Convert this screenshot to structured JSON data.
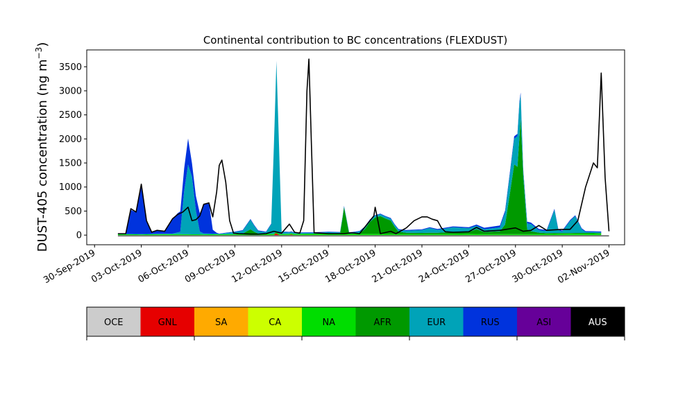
{
  "chart_data": {
    "type": "area",
    "title": "Continental contribution to BC concentrations (FLEXDUST)",
    "ylabel_main": "DUST-405 concentration (ng m",
    "ylabel_sup": "−3",
    "ylabel_end": ")",
    "xlabel": "",
    "stacked": true,
    "x_axis": {
      "start": "2019-09-29T12:00",
      "end": "2019-11-03T00:00",
      "ticks": [
        {
          "date": "2019-09-30",
          "label": "30-Sep-2019"
        },
        {
          "date": "2019-10-03",
          "label": "03-Oct-2019"
        },
        {
          "date": "2019-10-06",
          "label": "06-Oct-2019"
        },
        {
          "date": "2019-10-09",
          "label": "09-Oct-2019"
        },
        {
          "date": "2019-10-12",
          "label": "12-Oct-2019"
        },
        {
          "date": "2019-10-15",
          "label": "15-Oct-2019"
        },
        {
          "date": "2019-10-18",
          "label": "18-Oct-2019"
        },
        {
          "date": "2019-10-21",
          "label": "21-Oct-2019"
        },
        {
          "date": "2019-10-24",
          "label": "24-Oct-2019"
        },
        {
          "date": "2019-10-27",
          "label": "27-Oct-2019"
        },
        {
          "date": "2019-10-30",
          "label": "30-Oct-2019"
        },
        {
          "date": "2019-11-02",
          "label": "02-Nov-2019"
        }
      ]
    },
    "ylim": [
      -200,
      3850
    ],
    "y_ticks": [
      0,
      500,
      1000,
      1500,
      2000,
      2500,
      3000,
      3500
    ],
    "grid": false,
    "legend": {
      "placement": "colorbar-below",
      "entries": [
        {
          "name": "OCE",
          "color": "#cccccc",
          "text_color": "#000000"
        },
        {
          "name": "GNL",
          "color": "#e60000",
          "text_color": "#000000"
        },
        {
          "name": "SA",
          "color": "#ffaa00",
          "text_color": "#000000"
        },
        {
          "name": "CA",
          "color": "#ccff00",
          "text_color": "#000000"
        },
        {
          "name": "NA",
          "color": "#00dd00",
          "text_color": "#000000"
        },
        {
          "name": "AFR",
          "color": "#009900",
          "text_color": "#000000"
        },
        {
          "name": "EUR",
          "color": "#00a3b8",
          "text_color": "#000000"
        },
        {
          "name": "RUS",
          "color": "#0033dd",
          "text_color": "#000000"
        },
        {
          "name": "ASI",
          "color": "#660099",
          "text_color": "#000000"
        },
        {
          "name": "AUS",
          "color": "#000000",
          "text_color": "#ffffff"
        }
      ]
    },
    "series_order": [
      "GNL",
      "NA",
      "AFR",
      "EUR",
      "RUS"
    ],
    "series": {
      "GNL": [
        [
          "2019-10-11T12:00",
          0
        ],
        [
          "2019-10-11T15:00",
          40
        ],
        [
          "2019-10-11T18:00",
          20
        ],
        [
          "2019-10-11T21:00",
          0
        ],
        [
          "2019-10-12T12:00",
          0
        ],
        [
          "2019-10-12T15:00",
          15
        ],
        [
          "2019-10-12T18:00",
          0
        ]
      ],
      "NA": [
        [
          "2019-10-01T12:00",
          20
        ],
        [
          "2019-10-03T00:00",
          15
        ],
        [
          "2019-10-05T00:00",
          20
        ],
        [
          "2019-10-07T00:00",
          15
        ],
        [
          "2019-10-09T00:00",
          20
        ],
        [
          "2019-10-10T00:00",
          30
        ],
        [
          "2019-10-12T00:00",
          20
        ],
        [
          "2019-10-14T00:00",
          25
        ],
        [
          "2019-10-16T00:00",
          25
        ],
        [
          "2019-10-18T00:00",
          25
        ],
        [
          "2019-10-20T00:00",
          20
        ],
        [
          "2019-10-22T00:00",
          20
        ],
        [
          "2019-10-24T00:00",
          25
        ],
        [
          "2019-10-26T00:00",
          20
        ],
        [
          "2019-10-28T00:00",
          20
        ],
        [
          "2019-10-30T00:00",
          25
        ],
        [
          "2019-11-01T00:00",
          30
        ],
        [
          "2019-11-01T12:00",
          25
        ]
      ],
      "AFR": [
        [
          "2019-10-09T12:00",
          5
        ],
        [
          "2019-10-10T00:00",
          90
        ],
        [
          "2019-10-10T06:00",
          40
        ],
        [
          "2019-10-10T12:00",
          5
        ],
        [
          "2019-10-15T18:00",
          5
        ],
        [
          "2019-10-15T22:00",
          350
        ],
        [
          "2019-10-16T00:00",
          550
        ],
        [
          "2019-10-16T03:00",
          350
        ],
        [
          "2019-10-16T08:00",
          5
        ],
        [
          "2019-10-17T00:00",
          10
        ],
        [
          "2019-10-17T08:00",
          100
        ],
        [
          "2019-10-17T16:00",
          250
        ],
        [
          "2019-10-18T00:00",
          340
        ],
        [
          "2019-10-18T08:00",
          370
        ],
        [
          "2019-10-18T16:00",
          320
        ],
        [
          "2019-10-19T00:00",
          280
        ],
        [
          "2019-10-19T06:00",
          150
        ],
        [
          "2019-10-19T12:00",
          50
        ],
        [
          "2019-10-20T00:00",
          30
        ],
        [
          "2019-10-21T00:00",
          25
        ],
        [
          "2019-10-22T00:00",
          30
        ],
        [
          "2019-10-23T00:00",
          40
        ],
        [
          "2019-10-24T00:00",
          40
        ],
        [
          "2019-10-24T12:00",
          100
        ],
        [
          "2019-10-25T00:00",
          40
        ],
        [
          "2019-10-26T00:00",
          60
        ],
        [
          "2019-10-26T08:00",
          200
        ],
        [
          "2019-10-26T16:00",
          900
        ],
        [
          "2019-10-26T22:00",
          1450
        ],
        [
          "2019-10-27T03:00",
          1400
        ],
        [
          "2019-10-27T08:00",
          2400
        ],
        [
          "2019-10-27T12:00",
          1200
        ],
        [
          "2019-10-27T18:00",
          100
        ],
        [
          "2019-10-28T00:00",
          60
        ],
        [
          "2019-10-28T12:00",
          30
        ],
        [
          "2019-10-29T00:00",
          20
        ],
        [
          "2019-11-01T12:00",
          15
        ]
      ],
      "EUR": [
        [
          "2019-10-01T12:00",
          5
        ],
        [
          "2019-10-05T00:00",
          10
        ],
        [
          "2019-10-05T12:00",
          50
        ],
        [
          "2019-10-05T18:00",
          900
        ],
        [
          "2019-10-06T00:00",
          1450
        ],
        [
          "2019-10-06T06:00",
          1200
        ],
        [
          "2019-10-06T12:00",
          500
        ],
        [
          "2019-10-06T18:00",
          60
        ],
        [
          "2019-10-07T00:00",
          20
        ],
        [
          "2019-10-08T00:00",
          10
        ],
        [
          "2019-10-09T12:00",
          60
        ],
        [
          "2019-10-10T00:00",
          200
        ],
        [
          "2019-10-10T12:00",
          50
        ],
        [
          "2019-10-11T00:00",
          30
        ],
        [
          "2019-10-11T08:00",
          200
        ],
        [
          "2019-10-11T13:00",
          2200
        ],
        [
          "2019-10-11T16:00",
          3550
        ],
        [
          "2019-10-11T20:00",
          1800
        ],
        [
          "2019-10-12T00:00",
          40
        ],
        [
          "2019-10-13T00:00",
          20
        ],
        [
          "2019-10-14T00:00",
          20
        ],
        [
          "2019-10-15T00:00",
          30
        ],
        [
          "2019-10-16T12:00",
          20
        ],
        [
          "2019-10-17T00:00",
          40
        ],
        [
          "2019-10-20T00:00",
          40
        ],
        [
          "2019-10-21T00:00",
          60
        ],
        [
          "2019-10-21T12:00",
          100
        ],
        [
          "2019-10-22T00:00",
          60
        ],
        [
          "2019-10-23T00:00",
          100
        ],
        [
          "2019-10-24T00:00",
          80
        ],
        [
          "2019-10-25T00:00",
          60
        ],
        [
          "2019-10-26T00:00",
          80
        ],
        [
          "2019-10-27T06:00",
          700
        ],
        [
          "2019-10-27T12:00",
          100
        ],
        [
          "2019-10-28T00:00",
          150
        ],
        [
          "2019-10-28T12:00",
          50
        ],
        [
          "2019-10-29T00:00",
          40
        ],
        [
          "2019-10-29T12:00",
          480
        ],
        [
          "2019-10-29T18:00",
          60
        ],
        [
          "2019-10-30T00:00",
          30
        ],
        [
          "2019-10-30T12:00",
          250
        ],
        [
          "2019-10-30T20:00",
          350
        ],
        [
          "2019-10-31T06:00",
          80
        ],
        [
          "2019-10-31T12:00",
          20
        ],
        [
          "2019-11-01T12:00",
          20
        ]
      ],
      "RUS": [
        [
          "2019-10-01T12:00",
          5
        ],
        [
          "2019-10-02T00:00",
          10
        ],
        [
          "2019-10-02T08:00",
          500
        ],
        [
          "2019-10-02T16:00",
          450
        ],
        [
          "2019-10-03T00:00",
          1000
        ],
        [
          "2019-10-03T08:00",
          250
        ],
        [
          "2019-10-03T16:00",
          50
        ],
        [
          "2019-10-04T00:00",
          80
        ],
        [
          "2019-10-04T12:00",
          60
        ],
        [
          "2019-10-05T00:00",
          300
        ],
        [
          "2019-10-05T08:00",
          400
        ],
        [
          "2019-10-05T16:00",
          450
        ],
        [
          "2019-10-06T00:00",
          540
        ],
        [
          "2019-10-06T06:00",
          280
        ],
        [
          "2019-10-06T12:00",
          300
        ],
        [
          "2019-10-06T18:00",
          380
        ],
        [
          "2019-10-07T00:00",
          600
        ],
        [
          "2019-10-07T08:00",
          650
        ],
        [
          "2019-10-07T14:00",
          80
        ],
        [
          "2019-10-07T20:00",
          20
        ],
        [
          "2019-10-08T00:00",
          5
        ],
        [
          "2019-10-09T00:00",
          10
        ],
        [
          "2019-10-10T00:00",
          15
        ],
        [
          "2019-10-12T00:00",
          10
        ],
        [
          "2019-10-16T00:00",
          10
        ],
        [
          "2019-10-20T00:00",
          15
        ],
        [
          "2019-10-24T00:00",
          20
        ],
        [
          "2019-10-27T00:00",
          50
        ],
        [
          "2019-10-28T00:00",
          30
        ],
        [
          "2019-10-30T00:00",
          20
        ],
        [
          "2019-11-01T12:00",
          15
        ]
      ]
    },
    "total_outline": [
      [
        "2019-10-01T12:00",
        30
      ],
      [
        "2019-10-02T00:00",
        30
      ],
      [
        "2019-10-02T08:00",
        550
      ],
      [
        "2019-10-02T16:00",
        480
      ],
      [
        "2019-10-03T00:00",
        1060
      ],
      [
        "2019-10-03T08:00",
        300
      ],
      [
        "2019-10-03T16:00",
        60
      ],
      [
        "2019-10-04T00:00",
        100
      ],
      [
        "2019-10-04T12:00",
        80
      ],
      [
        "2019-10-05T00:00",
        340
      ],
      [
        "2019-10-05T08:00",
        430
      ],
      [
        "2019-10-05T16:00",
        480
      ],
      [
        "2019-10-06T00:00",
        580
      ],
      [
        "2019-10-06T06:00",
        300
      ],
      [
        "2019-10-06T12:00",
        320
      ],
      [
        "2019-10-06T18:00",
        400
      ],
      [
        "2019-10-07T00:00",
        640
      ],
      [
        "2019-10-07T08:00",
        670
      ],
      [
        "2019-10-07T14:00",
        380
      ],
      [
        "2019-10-07T20:00",
        900
      ],
      [
        "2019-10-08T00:00",
        1450
      ],
      [
        "2019-10-08T04:00",
        1560
      ],
      [
        "2019-10-08T10:00",
        1100
      ],
      [
        "2019-10-08T16:00",
        300
      ],
      [
        "2019-10-08T22:00",
        40
      ],
      [
        "2019-10-09T06:00",
        30
      ],
      [
        "2019-10-10T00:00",
        20
      ],
      [
        "2019-10-10T12:00",
        20
      ],
      [
        "2019-10-11T00:00",
        30
      ],
      [
        "2019-10-11T12:00",
        80
      ],
      [
        "2019-10-12T00:00",
        40
      ],
      [
        "2019-10-12T12:00",
        230
      ],
      [
        "2019-10-12T20:00",
        60
      ],
      [
        "2019-10-13T04:00",
        40
      ],
      [
        "2019-10-13T10:00",
        300
      ],
      [
        "2019-10-13T15:00",
        3000
      ],
      [
        "2019-10-13T18:00",
        3660
      ],
      [
        "2019-10-13T22:00",
        1800
      ],
      [
        "2019-10-14T02:00",
        50
      ],
      [
        "2019-10-15T00:00",
        30
      ],
      [
        "2019-10-16T00:00",
        30
      ],
      [
        "2019-10-16T12:00",
        50
      ],
      [
        "2019-10-17T00:00",
        30
      ],
      [
        "2019-10-17T22:00",
        400
      ],
      [
        "2019-10-18T00:00",
        580
      ],
      [
        "2019-10-18T03:00",
        380
      ],
      [
        "2019-10-18T08:00",
        30
      ],
      [
        "2019-10-19T00:00",
        80
      ],
      [
        "2019-10-19T08:00",
        30
      ],
      [
        "2019-10-20T00:00",
        150
      ],
      [
        "2019-10-20T12:00",
        300
      ],
      [
        "2019-10-21T00:00",
        380
      ],
      [
        "2019-10-21T08:00",
        380
      ],
      [
        "2019-10-21T16:00",
        330
      ],
      [
        "2019-10-22T00:00",
        300
      ],
      [
        "2019-10-22T06:00",
        150
      ],
      [
        "2019-10-22T12:00",
        70
      ],
      [
        "2019-10-23T00:00",
        60
      ],
      [
        "2019-10-24T00:00",
        70
      ],
      [
        "2019-10-24T12:00",
        160
      ],
      [
        "2019-10-25T00:00",
        80
      ],
      [
        "2019-10-26T00:00",
        100
      ],
      [
        "2019-10-27T00:00",
        150
      ],
      [
        "2019-10-27T12:00",
        80
      ],
      [
        "2019-10-28T00:00",
        100
      ],
      [
        "2019-10-28T12:00",
        200
      ],
      [
        "2019-10-29T00:00",
        100
      ],
      [
        "2019-10-30T00:00",
        120
      ],
      [
        "2019-10-30T12:00",
        120
      ],
      [
        "2019-10-31T00:00",
        300
      ],
      [
        "2019-10-31T12:00",
        1000
      ],
      [
        "2019-11-01T00:00",
        1500
      ],
      [
        "2019-11-01T06:00",
        1400
      ],
      [
        "2019-11-01T12:00",
        3370
      ],
      [
        "2019-11-01T18:00",
        1200
      ],
      [
        "2019-11-02T00:00",
        80
      ]
    ]
  }
}
